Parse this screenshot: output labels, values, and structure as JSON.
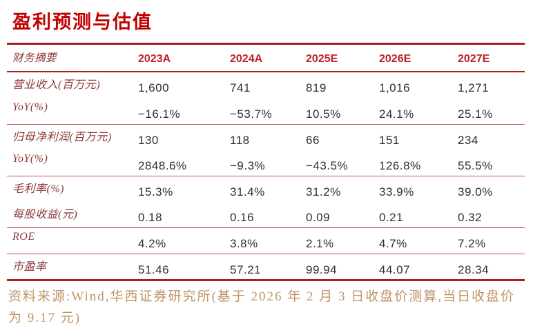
{
  "title": "盈利预测与估值",
  "table": {
    "header_label": "财务摘要",
    "columns": [
      "2023A",
      "2024A",
      "2025E",
      "2026E",
      "2027E"
    ],
    "rows": [
      {
        "label": "营业收入(百万元)",
        "values": [
          "1,600",
          "741",
          "819",
          "1,016",
          "1,271"
        ]
      },
      {
        "label": "YoY(%)",
        "values": [
          "−16.1%",
          "−53.7%",
          "10.5%",
          "24.1%",
          "25.1%"
        ]
      },
      {
        "label": "归母净利润(百万元)",
        "values": [
          "130",
          "118",
          "66",
          "151",
          "234"
        ]
      },
      {
        "label": "YoY(%)",
        "values": [
          "2848.6%",
          "−9.3%",
          "−43.5%",
          "126.8%",
          "55.5%"
        ]
      },
      {
        "label": "毛利率(%)",
        "values": [
          "15.3%",
          "31.4%",
          "31.2%",
          "33.9%",
          "39.0%"
        ]
      },
      {
        "label": "每股收益(元)",
        "values": [
          "0.18",
          "0.16",
          "0.09",
          "0.21",
          "0.32"
        ]
      },
      {
        "label": "ROE",
        "values": [
          "4.2%",
          "3.8%",
          "2.1%",
          "4.7%",
          "7.2%"
        ]
      },
      {
        "label": "市盈率",
        "values": [
          "51.46",
          "57.21",
          "99.94",
          "44.07",
          "28.34"
        ]
      }
    ]
  },
  "footer": {
    "source": "资料来源:Wind,华西证券研究所(基于 2026 年 2 月 3 日收盘价测算,当日收盘价为 9.17 元)"
  },
  "colors": {
    "title_red": "#C00000",
    "header_year_red": "#BE2026",
    "row_label_maroon": "#8C3837",
    "value_dark_gray": "#2E2E2E",
    "border_thick_red": "#A82023",
    "border_thin_red": "#C0514C",
    "source_tan": "#BE9467"
  }
}
